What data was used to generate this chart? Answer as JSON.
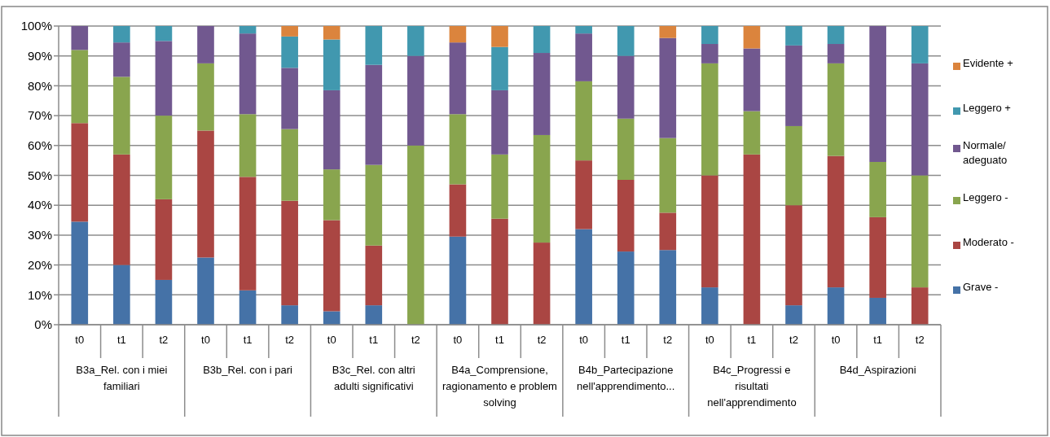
{
  "chart_data": {
    "type": "bar",
    "stacked": true,
    "categories": [
      "t0",
      "t1",
      "t2",
      "t0",
      "t1",
      "t2",
      "t0",
      "t1",
      "t2",
      "t0",
      "t1",
      "t2",
      "t0",
      "t1",
      "t2",
      "t0",
      "t1",
      "t2",
      "t0",
      "t1",
      "t2"
    ],
    "annotations": [
      "B3a_Rel. con i miei familiari",
      "B3b_Rel. con i pari",
      "B3c_Rel. con altri adulti significativi",
      "B4a_Comprensione, ragionamento e problem solving",
      "B4b_Partecipazione nell'apprendimento...",
      "B4c_Progressi e risultati nell'apprendimento",
      "B4d_Aspirazioni"
    ],
    "series": [
      {
        "name": "Grave -",
        "color": "#4572a7",
        "values": [
          34.5,
          20,
          15,
          22.5,
          11.5,
          6.5,
          4.5,
          6.5,
          0,
          29.5,
          0,
          0,
          32,
          24.5,
          25,
          12.5,
          0,
          6.5,
          12.5,
          9,
          0
        ]
      },
      {
        "name": "Moderato -",
        "color": "#aa4643",
        "values": [
          33,
          37,
          27,
          42.5,
          38,
          35,
          30.5,
          20,
          0,
          17.5,
          35.5,
          27.5,
          23,
          24,
          12.5,
          37.5,
          57,
          33.5,
          44,
          27,
          12.5
        ]
      },
      {
        "name": "Leggero -",
        "color": "#89a54e",
        "values": [
          24.5,
          26,
          28,
          22.5,
          21,
          24,
          17,
          27,
          60,
          23.5,
          21.5,
          36,
          26.5,
          20.5,
          25,
          37.5,
          14.5,
          26.5,
          31,
          18.5,
          37.5
        ]
      },
      {
        "name": "Normale/ adeguato",
        "color": "#71588f",
        "values": [
          8,
          11.5,
          25,
          12.5,
          27,
          20.5,
          26.5,
          33.5,
          30,
          24,
          21.5,
          27.5,
          16,
          21,
          33.5,
          6.5,
          21,
          27,
          6.5,
          45.5,
          37.5
        ]
      },
      {
        "name": "Leggero +",
        "color": "#4198af",
        "values": [
          0,
          5.5,
          5,
          0,
          2.5,
          10.5,
          17,
          13,
          10,
          0,
          14.5,
          9,
          2.5,
          10,
          0,
          6,
          0,
          6.5,
          6,
          0,
          12.5
        ]
      },
      {
        "name": "Evidente +",
        "color": "#db843d",
        "values": [
          0,
          0,
          0,
          0,
          0,
          3.5,
          4.5,
          0,
          0,
          5.5,
          7,
          0,
          0,
          0,
          4,
          0,
          7.5,
          0,
          0,
          0,
          0
        ]
      }
    ],
    "ylim": [
      0,
      100
    ],
    "yticks": [
      {
        "value": 0,
        "label": "0%"
      },
      {
        "value": 10,
        "label": "10%"
      },
      {
        "value": 20,
        "label": "20%"
      },
      {
        "value": 30,
        "label": "30%"
      },
      {
        "value": 40,
        "label": "40%"
      },
      {
        "value": 50,
        "label": "50%"
      },
      {
        "value": 60,
        "label": "60%"
      },
      {
        "value": 70,
        "label": "70%"
      },
      {
        "value": 80,
        "label": "80%"
      },
      {
        "value": 90,
        "label": "90%"
      },
      {
        "value": 100,
        "label": "100%"
      }
    ],
    "grid": "y",
    "legend": "right"
  }
}
